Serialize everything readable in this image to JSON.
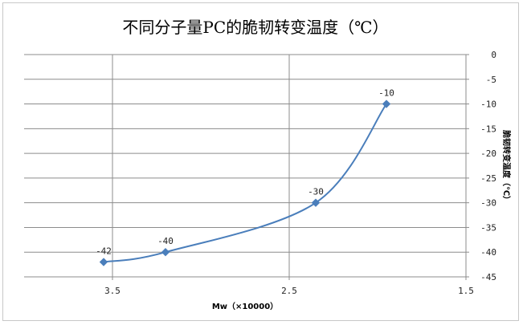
{
  "chart_data": {
    "type": "line",
    "title": "不同分子量PC的脆韧转变温度（℃）",
    "xlabel": "Mw（×10000）",
    "ylabel": "脆韧转变温度（℃）",
    "x_reversed": true,
    "xlim": [
      1.5,
      4
    ],
    "ylim": [
      -45,
      0
    ],
    "x_ticks": [
      "3.5",
      "2.5",
      "1.5"
    ],
    "y_ticks": [
      "0",
      "-5",
      "-10",
      "-15",
      "-20",
      "-25",
      "-30",
      "-35",
      "-40",
      "-45"
    ],
    "series": [
      {
        "x": [
          3.55,
          3.2,
          2.35,
          1.95
        ],
        "y": [
          -42,
          -40,
          -30,
          -10
        ],
        "labels": [
          "-42",
          "-40",
          "-30",
          "-10"
        ]
      }
    ],
    "line_color": "#4a7ebb",
    "grid": true,
    "legend": "none"
  }
}
